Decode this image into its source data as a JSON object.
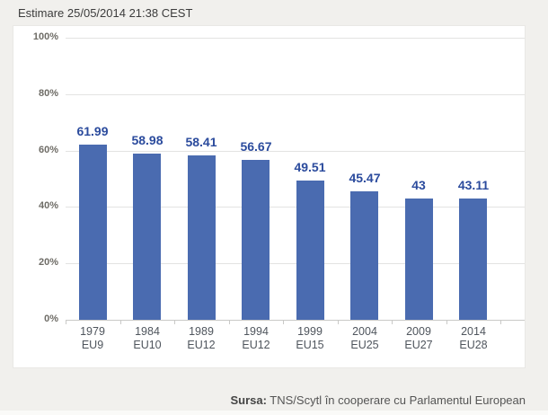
{
  "header": {
    "title": "Estimare 25/05/2014 21:38 CEST"
  },
  "chart_data": {
    "type": "bar",
    "title": "Estimare 25/05/2014 21:38 CEST",
    "categories": [
      "1979",
      "1984",
      "1989",
      "1994",
      "1999",
      "2004",
      "2009",
      "2014"
    ],
    "category_sublabels": [
      "EU9",
      "EU10",
      "EU12",
      "EU12",
      "EU15",
      "EU25",
      "EU27",
      "EU28"
    ],
    "values": [
      61.99,
      58.98,
      58.41,
      56.67,
      49.51,
      45.47,
      43,
      43.11
    ],
    "value_labels": [
      "61.99",
      "58.98",
      "58.41",
      "56.67",
      "49.51",
      "45.47",
      "43",
      "43.11"
    ],
    "xlabel": "",
    "ylabel": "",
    "ylim": [
      0,
      100
    ],
    "yticks": [
      100,
      80,
      60,
      40,
      20,
      0
    ],
    "ytick_labels": [
      "100%",
      "80%",
      "60%",
      "40%",
      "20%",
      "0%"
    ],
    "grid": true,
    "legend": "none",
    "colors": {
      "bar": "#4a6bb0",
      "value_label": "#2b4b9d",
      "ytick_label": "#6e6c66",
      "xtick_label": "#4f555d",
      "gridline": "#e3e3e2",
      "axis_line": "#c9c9c7",
      "panel_background": "#ffffff",
      "page_background": "#f1f0ed"
    }
  },
  "footer": {
    "source_label": "Sursa:",
    "source_text": " TNS/Scytl în cooperare cu Parlamentul European"
  }
}
